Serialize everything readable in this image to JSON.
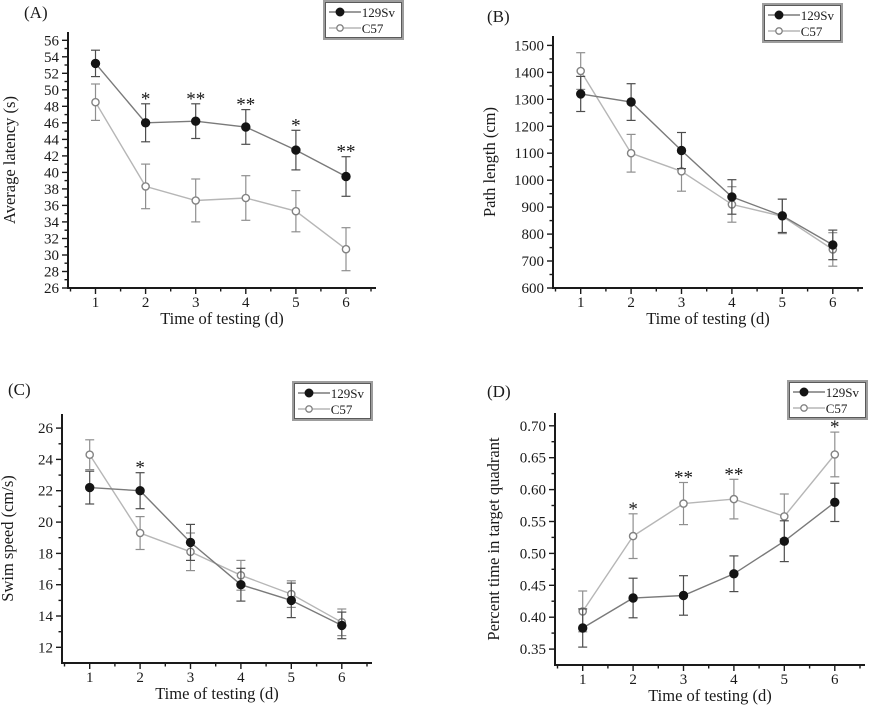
{
  "figure": {
    "panel_labels": [
      "(A)",
      "(B)",
      "(C)",
      "(D)"
    ],
    "series_names": [
      "129Sv",
      "C57"
    ],
    "xlabel": "Time of testing (d)",
    "x": [
      1,
      2,
      3,
      4,
      5,
      6
    ],
    "xtick_labels": [
      "1",
      "2",
      "3",
      "4",
      "5",
      "6"
    ],
    "xlim": [
      0.45,
      6.6
    ]
  },
  "chart_data": [
    {
      "panel": "(A)",
      "type": "line",
      "title": "",
      "xlabel": "Time of testing (d)",
      "ylabel": "Average latency (s)",
      "x": [
        1,
        2,
        3,
        4,
        5,
        6
      ],
      "ylim": [
        26,
        57
      ],
      "yticks": [
        26,
        28,
        30,
        32,
        34,
        36,
        38,
        40,
        42,
        44,
        46,
        48,
        50,
        52,
        54,
        56
      ],
      "ytick_labels": [
        "26",
        "28",
        "30",
        "32",
        "34",
        "36",
        "38",
        "40",
        "42",
        "44",
        "46",
        "48",
        "50",
        "52",
        "54",
        "56"
      ],
      "legend_position": "top-right",
      "grid": false,
      "series": [
        {
          "name": "129Sv",
          "marker": "filled-circle",
          "values": [
            53.2,
            46.0,
            46.2,
            45.5,
            42.7,
            39.5
          ],
          "errors": [
            1.6,
            2.3,
            2.1,
            2.1,
            2.4,
            2.4
          ]
        },
        {
          "name": "C57",
          "marker": "open-circle",
          "values": [
            48.5,
            38.3,
            36.6,
            36.9,
            35.3,
            30.7
          ],
          "errors": [
            2.2,
            2.7,
            2.6,
            2.7,
            2.5,
            2.6
          ]
        }
      ],
      "significance": [
        {
          "day": 2,
          "series": "129Sv",
          "label": "*"
        },
        {
          "day": 3,
          "series": "129Sv",
          "label": "**"
        },
        {
          "day": 4,
          "series": "129Sv",
          "label": "**"
        },
        {
          "day": 5,
          "series": "129Sv",
          "label": "*"
        },
        {
          "day": 6,
          "series": "129Sv",
          "label": "**"
        }
      ]
    },
    {
      "panel": "(B)",
      "type": "line",
      "title": "",
      "xlabel": "Time of testing (d)",
      "ylabel": "Path length (cm)",
      "x": [
        1,
        2,
        3,
        4,
        5,
        6
      ],
      "ylim": [
        600,
        1535
      ],
      "yticks": [
        600,
        700,
        800,
        900,
        1000,
        1100,
        1200,
        1300,
        1400,
        1500
      ],
      "ytick_labels": [
        "600",
        "700",
        "800",
        "900",
        "1000",
        "1100",
        "1200",
        "1300",
        "1400",
        "1500"
      ],
      "legend_position": "top-right",
      "grid": false,
      "series": [
        {
          "name": "129Sv",
          "marker": "filled-circle",
          "values": [
            1320,
            1290,
            1110,
            938,
            868,
            760
          ],
          "errors": [
            65,
            68,
            67,
            64,
            62,
            55
          ]
        },
        {
          "name": "C57",
          "marker": "open-circle",
          "values": [
            1405,
            1100,
            1033,
            910,
            866,
            743
          ],
          "errors": [
            68,
            70,
            74,
            66,
            64,
            62
          ]
        }
      ],
      "significance": []
    },
    {
      "panel": "(C)",
      "type": "line",
      "title": "",
      "xlabel": "Time of testing (d)",
      "ylabel": "Swim speed (cm/s)",
      "x": [
        1,
        2,
        3,
        4,
        5,
        6
      ],
      "ylim": [
        11,
        26.9
      ],
      "yticks": [
        12,
        14,
        16,
        18,
        20,
        22,
        24,
        26
      ],
      "ytick_labels": [
        "12",
        "14",
        "16",
        "18",
        "20",
        "22",
        "24",
        "26"
      ],
      "legend_position": "top-right",
      "grid": false,
      "series": [
        {
          "name": "129Sv",
          "marker": "filled-circle",
          "values": [
            22.2,
            22.0,
            18.7,
            16.0,
            15.0,
            13.4
          ],
          "errors": [
            1.05,
            1.15,
            1.15,
            1.05,
            1.1,
            0.85
          ]
        },
        {
          "name": "C57",
          "marker": "open-circle",
          "values": [
            24.3,
            19.3,
            18.1,
            16.6,
            15.4,
            13.6
          ],
          "errors": [
            0.95,
            1.05,
            1.2,
            0.95,
            0.85,
            0.85
          ]
        }
      ],
      "significance": [
        {
          "day": 2,
          "series": "129Sv",
          "label": "*"
        }
      ]
    },
    {
      "panel": "(D)",
      "type": "line",
      "title": "",
      "xlabel": "Time of testing (d)",
      "ylabel": "Percent time in target quadrant",
      "x": [
        1,
        2,
        3,
        4,
        5,
        6
      ],
      "ylim": [
        0.325,
        0.72
      ],
      "yticks": [
        0.35,
        0.4,
        0.45,
        0.5,
        0.55,
        0.6,
        0.65,
        0.7
      ],
      "ytick_labels": [
        "0.35",
        "0.40",
        "0.45",
        "0.50",
        "0.55",
        "0.60",
        "0.65",
        "0.70"
      ],
      "legend_position": "top-right",
      "grid": false,
      "series": [
        {
          "name": "129Sv",
          "marker": "filled-circle",
          "values": [
            0.383,
            0.43,
            0.434,
            0.468,
            0.519,
            0.58
          ],
          "errors": [
            0.03,
            0.031,
            0.031,
            0.028,
            0.032,
            0.03
          ]
        },
        {
          "name": "C57",
          "marker": "open-circle",
          "values": [
            0.409,
            0.527,
            0.578,
            0.585,
            0.558,
            0.655
          ],
          "errors": [
            0.032,
            0.035,
            0.033,
            0.031,
            0.035,
            0.035
          ]
        }
      ],
      "significance": [
        {
          "day": 2,
          "series": "C57",
          "label": "*"
        },
        {
          "day": 3,
          "series": "C57",
          "label": "**"
        },
        {
          "day": 4,
          "series": "C57",
          "label": "**"
        },
        {
          "day": 6,
          "series": "C57",
          "label": "*"
        }
      ]
    }
  ],
  "colors": {
    "background": "#ffffff",
    "axis": "#1a1a1a",
    "text": "#1a1a1a",
    "legend_border": "#9d9d9d",
    "series": {
      "129Sv": {
        "line": "#7a7a7a",
        "marker_fill": "#141414",
        "marker_stroke": "#141414",
        "error": "#4d4d4d"
      },
      "C57": {
        "line": "#b6b6b6",
        "marker_fill": "#ffffff",
        "marker_stroke": "#828282",
        "error": "#8f8f8f"
      }
    }
  }
}
